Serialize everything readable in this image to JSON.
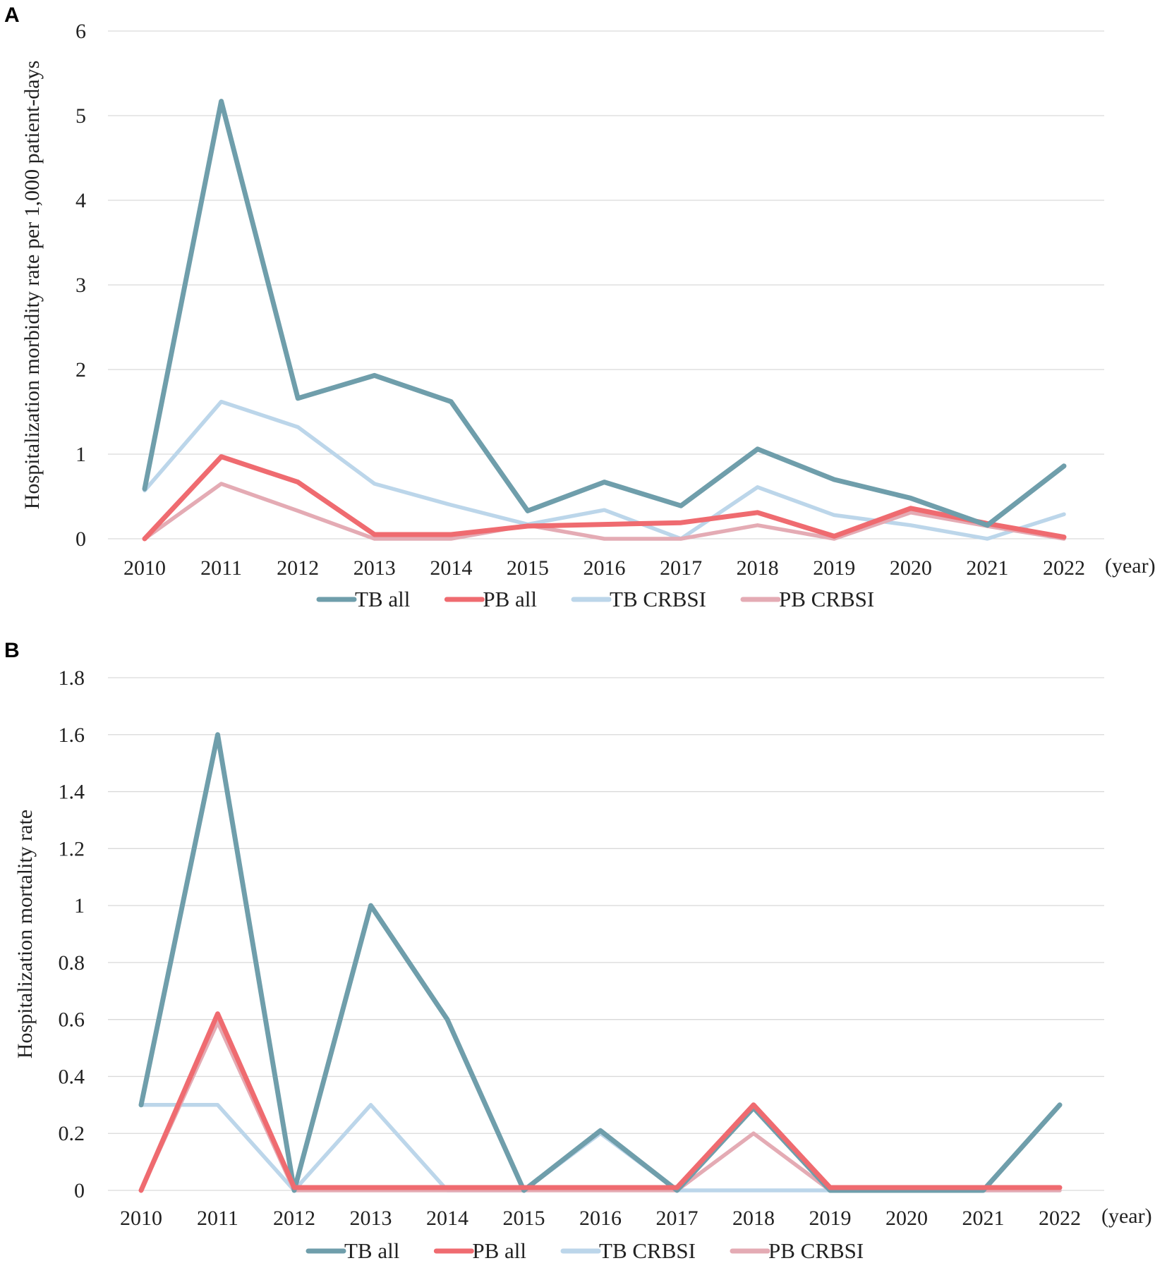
{
  "colors": {
    "TB all": "#6f9eab",
    "PB all": "#ef6b70",
    "TB CRBSI": "#bcd6ea",
    "PB CRBSI": "#e4abb4"
  },
  "chart_data": [
    {
      "panel": "A",
      "type": "line",
      "ylabel": "Hospitalization morbidity rate per 1,000 patient-days",
      "xunit": "(year)",
      "categories": [
        "2010",
        "2011",
        "2012",
        "2013",
        "2014",
        "2015",
        "2016",
        "2017",
        "2018",
        "2019",
        "2020",
        "2021",
        "2022"
      ],
      "ylim": [
        0,
        6
      ],
      "yticks": [
        "0",
        "1",
        "2",
        "3",
        "4",
        "5",
        "6"
      ],
      "grid": true,
      "legend": "bottom",
      "series": [
        {
          "name": "TB CRBSI",
          "values": [
            0.57,
            1.62,
            1.32,
            0.65,
            0.4,
            0.17,
            0.34,
            0.0,
            0.61,
            0.28,
            0.16,
            0.0,
            0.29
          ]
        },
        {
          "name": "PB CRBSI",
          "values": [
            0.0,
            0.65,
            0.33,
            0.0,
            0.0,
            0.16,
            0.0,
            0.0,
            0.16,
            0.0,
            0.31,
            0.15,
            0.0
          ]
        },
        {
          "name": "PB all",
          "values": [
            0.0,
            0.97,
            0.67,
            0.05,
            0.05,
            0.15,
            0.17,
            0.19,
            0.31,
            0.03,
            0.36,
            0.18,
            0.02
          ]
        },
        {
          "name": "TB all",
          "values": [
            0.59,
            5.17,
            1.66,
            1.93,
            1.62,
            0.33,
            0.67,
            0.39,
            1.06,
            0.7,
            0.48,
            0.16,
            0.86
          ]
        }
      ],
      "legend_order": [
        "TB all",
        "PB all",
        "TB CRBSI",
        "PB CRBSI"
      ]
    },
    {
      "panel": "B",
      "type": "line",
      "ylabel": "Hospitalization mortality rate",
      "xunit": "(year)",
      "categories": [
        "2010",
        "2011",
        "2012",
        "2013",
        "2014",
        "2015",
        "2016",
        "2017",
        "2018",
        "2019",
        "2020",
        "2021",
        "2022"
      ],
      "ylim": [
        0,
        1.8
      ],
      "yticks": [
        "0",
        "0.2",
        "0.4",
        "0.6",
        "0.8",
        "1",
        "1.2",
        "1.4",
        "1.6",
        "1.8"
      ],
      "grid": true,
      "legend": "bottom",
      "series": [
        {
          "name": "TB CRBSI",
          "values": [
            0.3,
            0.3,
            0.0,
            0.3,
            0.0,
            0.0,
            0.2,
            0.0,
            0.0,
            0.0,
            0.0,
            0.0,
            0.0
          ]
        },
        {
          "name": "PB CRBSI",
          "values": [
            0.0,
            0.59,
            0.0,
            0.0,
            0.0,
            0.0,
            0.0,
            0.0,
            0.2,
            0.0,
            0.0,
            0.0,
            0.0
          ]
        },
        {
          "name": "TB all",
          "values": [
            0.3,
            1.6,
            0.0,
            1.0,
            0.6,
            0.0,
            0.21,
            0.0,
            0.29,
            0.0,
            0.0,
            0.0,
            0.3
          ]
        },
        {
          "name": "PB all",
          "values": [
            0.0,
            0.62,
            0.01,
            0.01,
            0.01,
            0.01,
            0.01,
            0.01,
            0.3,
            0.01,
            0.01,
            0.01,
            0.01
          ]
        }
      ],
      "legend_order": [
        "TB all",
        "PB all",
        "TB CRBSI",
        "PB CRBSI"
      ]
    }
  ]
}
